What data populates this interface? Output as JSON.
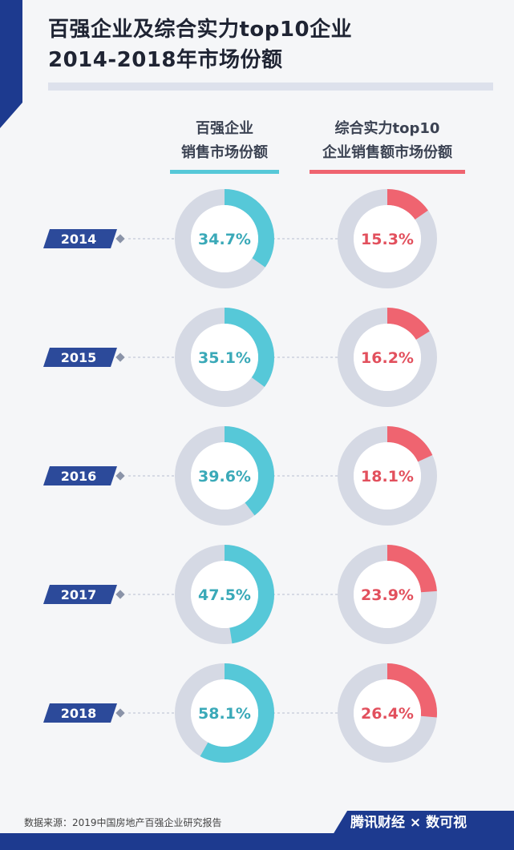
{
  "chart_data": {
    "type": "donut",
    "title": "百强企业及综合实力top10企业 2014-2018年市场份额",
    "categories": [
      "2014",
      "2015",
      "2016",
      "2017",
      "2018"
    ],
    "series": [
      {
        "name": "百强企业 销售市场份额",
        "values": [
          34.7,
          35.1,
          39.6,
          47.5,
          58.1
        ],
        "color": "#56c8d8",
        "labels": [
          "34.7%",
          "35.1%",
          "39.6%",
          "47.5%",
          "58.1%"
        ]
      },
      {
        "name": "综合实力top10 企业销售额市场份额",
        "values": [
          15.3,
          16.2,
          18.1,
          23.9,
          26.4
        ],
        "color": "#ef6470",
        "labels": [
          "15.3%",
          "16.2%",
          "18.1%",
          "23.9%",
          "26.4%"
        ]
      }
    ]
  },
  "title_line1": "百强企业及综合实力top10企业",
  "title_line2": "2014-2018年市场份额",
  "header_left": [
    "百强企业",
    "销售市场份额"
  ],
  "header_right": [
    "综合实力top10",
    "企业销售额市场份额"
  ],
  "source": "数据来源：2019中国房地产百强企业研究报告",
  "brand": "腾讯财经 × 数可视",
  "colors": {
    "ring": "#d5d9e4",
    "badge": "#2c4a9a",
    "accent_blue": "#1d3a8f"
  }
}
